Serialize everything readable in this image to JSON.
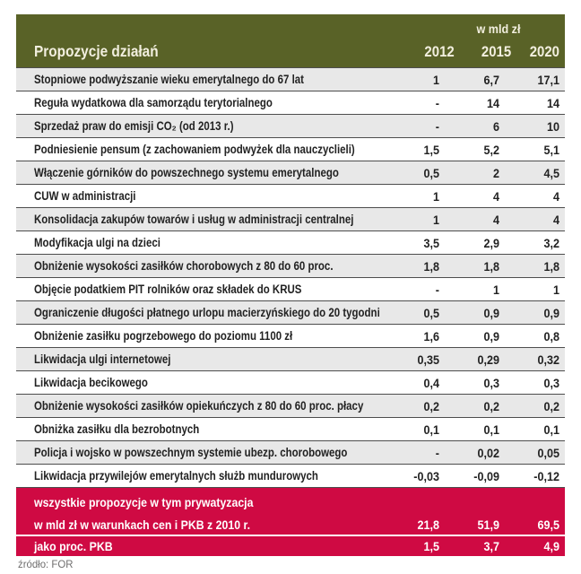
{
  "chart_data": {
    "type": "table",
    "title": "Propozycje działań",
    "unit_label": "w mld zł",
    "year_columns": [
      "2012",
      "2015",
      "2020"
    ],
    "rows": [
      {
        "label": "Stopniowe podwyższanie wieku emerytalnego  do 67 lat",
        "values": [
          "1",
          "6,7",
          "17,1"
        ]
      },
      {
        "label": "Reguła wydatkowa dla samorządu terytorialnego",
        "values": [
          "-",
          "14",
          "14"
        ]
      },
      {
        "label": "Sprzedaż praw do emisji CO₂ (od 2013 r.)",
        "values": [
          "-",
          "6",
          "10"
        ]
      },
      {
        "label": "Podniesienie pensum (z zachowaniem podwyżek dla nauczyclieli)",
        "values": [
          "1,5",
          "5,2",
          "5,1"
        ]
      },
      {
        "label": "Włączenie górników do powszechnego systemu emerytalnego",
        "values": [
          "0,5",
          "2",
          "4,5"
        ]
      },
      {
        "label": "CUW w administracji",
        "values": [
          "1",
          "4",
          "4"
        ]
      },
      {
        "label": "Konsolidacja zakupów towarów i usług w administracji centralnej",
        "values": [
          "1",
          "4",
          "4"
        ]
      },
      {
        "label": "Modyfikacja ulgi na dzieci",
        "values": [
          "3,5",
          "2,9",
          "3,2"
        ]
      },
      {
        "label": "Obniżenie wysokości zasiłków chorobowych z 80 do 60 proc.",
        "values": [
          "1,8",
          "1,8",
          "1,8"
        ]
      },
      {
        "label": "Objęcie podatkiem PIT rolników oraz składek do KRUS",
        "values": [
          "-",
          "1",
          "1"
        ]
      },
      {
        "label": "Ograniczenie długości płatnego urlopu macierzyńskiego do 20 tygodni",
        "values": [
          "0,5",
          "0,9",
          "0,9"
        ]
      },
      {
        "label": "Obniżenie zasiłku pogrzebowego do poziomu 1100 zł",
        "values": [
          "1,6",
          "0,9",
          "0,8"
        ]
      },
      {
        "label": "Likwidacja ulgi internetowej",
        "values": [
          "0,35",
          "0,29",
          "0,32"
        ]
      },
      {
        "label": "Likwidacja becikowego",
        "values": [
          "0,4",
          "0,3",
          "0,3"
        ]
      },
      {
        "label": "Obniżenie wysokości zasiłków opiekuńczych z 80 do 60 proc. płacy",
        "values": [
          "0,2",
          "0,2",
          "0,2"
        ]
      },
      {
        "label": "Obniżka zasiłku dla bezrobotnych",
        "values": [
          "0,1",
          "0,1",
          "0,1"
        ]
      },
      {
        "label": "Policja i wojsko w powszechnym systemie ubezp. chorobowego",
        "values": [
          "-",
          "0,02",
          "0,05"
        ]
      },
      {
        "label": "Likwidacja przywilejów emerytalnych służb mundurowych",
        "values": [
          "-0,03",
          "-0,09",
          "-0,12"
        ]
      }
    ],
    "summary": {
      "line1": "wszystkie propozycje w tym prywatyzacja",
      "line2": "w mld zł w warunkach cen i PKB z 2010 r.",
      "line2_values": [
        "21,8",
        "51,9",
        "69,5"
      ],
      "pkb_label": "jako proc. PKB",
      "pkb_values": [
        "1,5",
        "3,7",
        "4,9"
      ]
    },
    "source": "źródło: FOR"
  },
  "colors": {
    "header_bg": "#596227",
    "header_text": "#f2efdf",
    "summary_bg": "#cf0a43",
    "row_alt_bg": "#e8e8e8",
    "separator": "#4d4d4d",
    "source_text": "#6f6e6e"
  }
}
